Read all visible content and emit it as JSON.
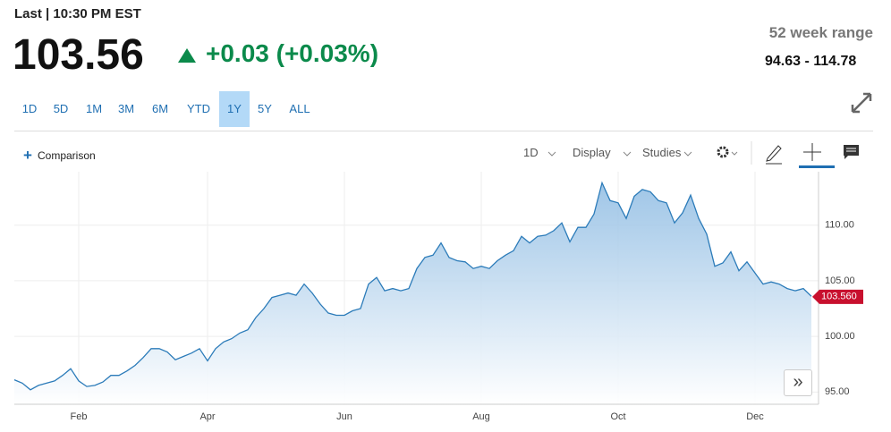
{
  "header": {
    "last_label": "Last | 10:30 PM EST",
    "price": "103.56",
    "change": "+0.03 (+0.03%)",
    "range_label": "52 week range",
    "range": "94.63 - 114.78"
  },
  "periods": [
    {
      "label": "1D"
    },
    {
      "label": "5D"
    },
    {
      "label": "1M"
    },
    {
      "label": "3M"
    },
    {
      "label": "6M"
    },
    {
      "label": "YTD"
    },
    {
      "label": "1Y",
      "selected": true
    },
    {
      "label": "5Y"
    },
    {
      "label": "ALL"
    }
  ],
  "toolbar": {
    "comparison": "Comparison",
    "interval": "1D",
    "display": "Display",
    "studies": "Studies"
  },
  "chart_data": {
    "type": "area",
    "color": "#2b7bb9",
    "grid": true,
    "categories": [
      null,
      null,
      null,
      null,
      null,
      null,
      null,
      null,
      "Feb",
      null,
      null,
      null,
      null,
      null,
      null,
      null,
      null,
      null,
      null,
      null,
      null,
      null,
      null,
      null,
      "Apr",
      null,
      null,
      null,
      null,
      null,
      null,
      null,
      null,
      null,
      null,
      null,
      null,
      null,
      null,
      null,
      null,
      "Jun",
      null,
      null,
      null,
      null,
      null,
      null,
      null,
      null,
      null,
      null,
      null,
      null,
      null,
      null,
      null,
      null,
      "Aug",
      null,
      null,
      null,
      null,
      null,
      null,
      null,
      null,
      null,
      null,
      null,
      null,
      null,
      null,
      null,
      null,
      "Oct",
      null,
      null,
      null,
      null,
      null,
      null,
      null,
      null,
      null,
      null,
      null,
      null,
      null,
      null,
      null,
      null,
      "Dec",
      null,
      null,
      null,
      null,
      null,
      null,
      null
    ],
    "values": [
      96.1,
      95.8,
      95.2,
      95.6,
      95.8,
      96.0,
      96.5,
      97.1,
      96.0,
      95.5,
      95.6,
      95.9,
      96.5,
      96.5,
      96.9,
      97.4,
      98.1,
      98.9,
      98.9,
      98.6,
      97.9,
      98.2,
      98.5,
      98.9,
      97.8,
      98.9,
      99.5,
      99.8,
      100.3,
      100.6,
      101.7,
      102.5,
      103.5,
      103.7,
      103.9,
      103.7,
      104.7,
      103.9,
      102.9,
      102.1,
      101.9,
      101.9,
      102.3,
      102.5,
      104.7,
      105.3,
      104.1,
      104.3,
      104.1,
      104.3,
      106.1,
      107.1,
      107.3,
      108.4,
      107.1,
      106.8,
      106.7,
      106.1,
      106.3,
      106.1,
      106.8,
      107.3,
      107.7,
      109.0,
      108.4,
      109.0,
      109.1,
      109.5,
      110.2,
      108.5,
      109.8,
      109.8,
      111.0,
      113.8,
      112.2,
      112.0,
      110.6,
      112.6,
      113.2,
      113.0,
      112.2,
      112.0,
      110.2,
      111.1,
      112.7,
      110.6,
      109.2,
      106.3,
      106.6,
      107.6,
      105.9,
      106.7,
      105.7,
      104.7,
      104.9,
      104.7,
      104.3,
      104.1,
      104.3,
      103.6
    ],
    "ylim": [
      93.9,
      114.8
    ],
    "yticks": [
      {
        "value": 95,
        "label": "95.00"
      },
      {
        "value": 100,
        "label": "100.00"
      },
      {
        "value": 105,
        "label": "105.00"
      },
      {
        "value": 110,
        "label": "110.00"
      }
    ],
    "last_label": {
      "value": 103.56,
      "label": "103.560"
    }
  }
}
